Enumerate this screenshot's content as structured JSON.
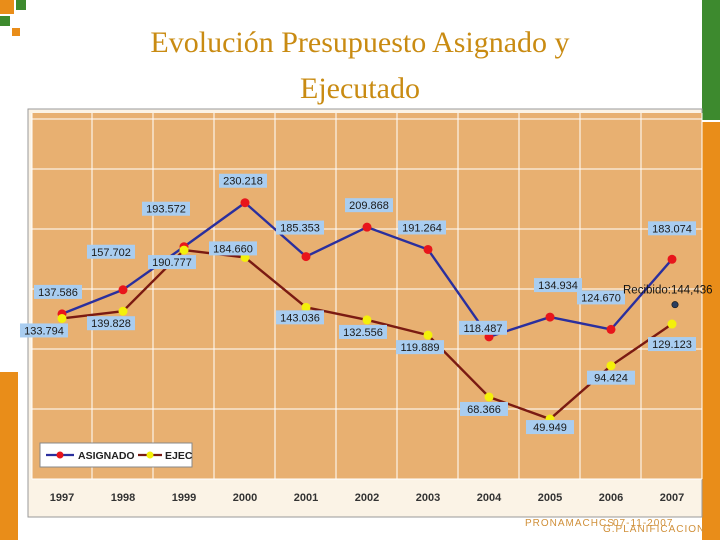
{
  "page": {
    "title_line1": "Evolución Presupuesto Asignado y",
    "title_line2": "Ejecutado",
    "footer_left": "PRONAMACHCS",
    "footer_overlap_a": "G.PLANIFICACION",
    "footer_overlap_b": "07-11-2007"
  },
  "colors": {
    "title": "#c98b12",
    "plot_background": "#e8b071",
    "asignado_line": "#2a2f9e",
    "asignado_marker": "#e8151b",
    "ejec_line": "#7a1a12",
    "ejec_marker": "#f4f00a",
    "label_background": "#a9cdf0",
    "accent_orange": "#e98d19",
    "accent_green": "#3d8a2e"
  },
  "chart_data": {
    "type": "line",
    "categories": [
      "1997",
      "1998",
      "1999",
      "2000",
      "2001",
      "2002",
      "2003",
      "2004",
      "2005",
      "2006",
      "2007"
    ],
    "series": [
      {
        "name": "ASIGNADO",
        "values": [
          137.586,
          157.702,
          193.572,
          230.218,
          185.353,
          209.868,
          191.264,
          118.487,
          134.934,
          124.67,
          183.074
        ],
        "labels": [
          "137.586",
          "157.702",
          "193.572",
          "230.218",
          "185.353",
          "209.868",
          "191.264",
          "118.487",
          "134.934",
          "124.670",
          "183.074"
        ]
      },
      {
        "name": "EJEC",
        "values": [
          133.794,
          139.828,
          190.777,
          184.66,
          143.036,
          132.556,
          119.889,
          68.366,
          49.949,
          94.424,
          129.123
        ],
        "labels": [
          "133.794",
          "139.828",
          "190.777",
          "184.660",
          "143.036",
          "132.556",
          "119.889",
          "68.366",
          "49.949",
          "94.424",
          "129.123"
        ]
      }
    ],
    "annotation": {
      "text": "Recibido:144,436",
      "x": "2007",
      "y": 144.436
    },
    "ylim": [
      0,
      270
    ],
    "grid": true,
    "legend": "bottom-left",
    "title": "",
    "xlabel": "",
    "ylabel": ""
  }
}
